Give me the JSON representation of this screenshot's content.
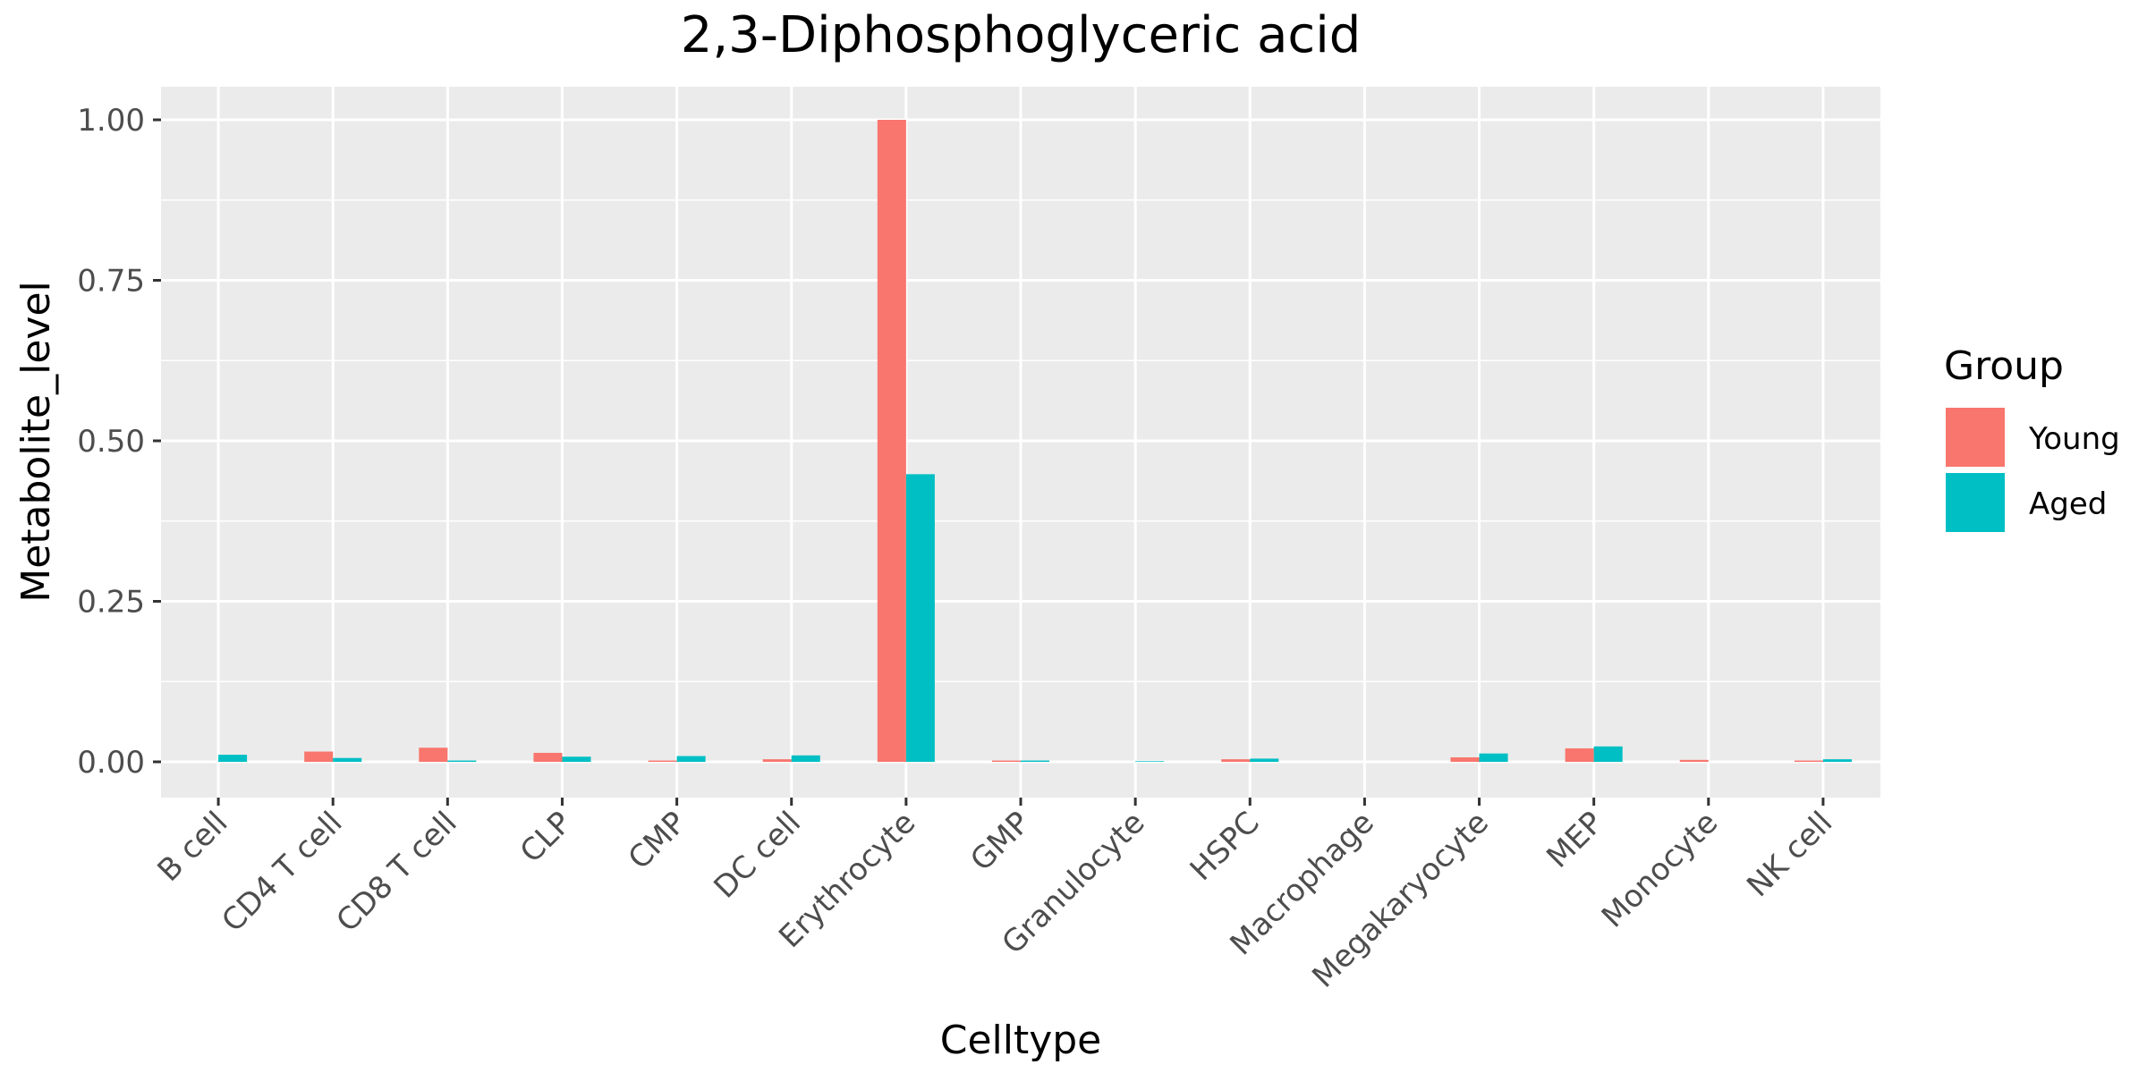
{
  "chart_data": {
    "type": "bar",
    "title": "2,3-Diphosphoglyceric acid",
    "xlabel": "Celltype",
    "ylabel": "Metabolite_level",
    "ylim": [
      -0.05,
      1.05
    ],
    "yticks": [
      0.0,
      0.25,
      0.5,
      0.75,
      1.0
    ],
    "ytick_labels": [
      "0.00",
      "0.25",
      "0.50",
      "0.75",
      "1.00"
    ],
    "grid": true,
    "legend": {
      "title": "Group",
      "position": "right"
    },
    "categories": [
      "B cell",
      "CD4 T cell",
      "CD8 T cell",
      "CLP",
      "CMP",
      "DC cell",
      "Erythrocyte",
      "GMP",
      "Granulocyte",
      "HSPC",
      "Macrophage",
      "Megakaryocyte",
      "MEP",
      "Monocyte",
      "NK cell"
    ],
    "series": [
      {
        "name": "Young",
        "color": "#F8766D",
        "values": [
          0.0,
          0.016,
          0.022,
          0.014,
          0.002,
          0.004,
          1.0,
          0.002,
          0.0,
          0.004,
          0.0,
          0.007,
          0.021,
          0.003,
          0.002
        ]
      },
      {
        "name": "Aged",
        "color": "#00BFC4",
        "values": [
          0.011,
          0.006,
          0.002,
          0.008,
          0.009,
          0.01,
          0.448,
          0.002,
          0.001,
          0.005,
          0.0,
          0.013,
          0.024,
          0.0,
          0.004
        ]
      }
    ]
  }
}
